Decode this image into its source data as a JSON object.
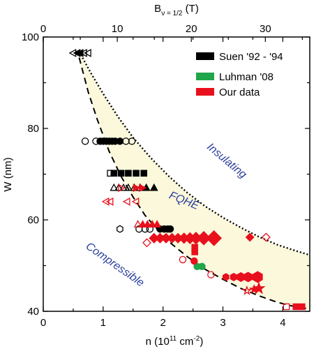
{
  "chart_data": {
    "type": "scatter",
    "xlabel": "n (10",
    "xlabel_sup": "11",
    "xlabel_unit": " cm",
    "xlabel_unit_sup": "-2",
    "xlabel_end": ")",
    "ylabel": "W (nm)",
    "top_xlabel": "B",
    "top_xlabel_sub": "ν = 1/2",
    "top_xlabel_end": " (T)",
    "xlim": [
      0,
      4.45
    ],
    "ylim": [
      40,
      100
    ],
    "top_xlim": [
      0,
      36
    ],
    "x_ticks": [
      "0",
      "1",
      "2",
      "3",
      "4"
    ],
    "y_ticks": [
      "40",
      "60",
      "80",
      "100"
    ],
    "top_ticks": [
      "0",
      "10",
      "20",
      "30"
    ],
    "annotations": [
      "Insulating",
      "FQHE",
      "Compressible"
    ],
    "legend": [
      {
        "label": "Suen '92 - '94",
        "color": "#000000"
      },
      {
        "label": "Luhman '08",
        "color": "#1fa64a"
      },
      {
        "label": "Our data",
        "color": "#e8101c"
      }
    ],
    "fill_color": "#fbf8dc",
    "upper_boundary": {
      "style": "dotted",
      "points": [
        [
          0.6,
          96.8
        ],
        [
          0.8,
          92.0
        ],
        [
          1.0,
          87.6
        ],
        [
          1.25,
          82.5
        ],
        [
          1.5,
          78.0
        ],
        [
          1.8,
          73.5
        ],
        [
          2.1,
          69.5
        ],
        [
          2.4,
          66.0
        ],
        [
          2.7,
          63.0
        ],
        [
          3.0,
          60.5
        ],
        [
          3.3,
          58.3
        ],
        [
          3.6,
          56.3
        ],
        [
          3.9,
          54.6
        ],
        [
          4.2,
          53.3
        ],
        [
          4.45,
          52.3
        ]
      ]
    },
    "lower_boundary": {
      "style": "dashed",
      "points": [
        [
          0.6,
          95.5
        ],
        [
          0.75,
          88.0
        ],
        [
          0.9,
          82.0
        ],
        [
          1.1,
          75.0
        ],
        [
          1.3,
          69.5
        ],
        [
          1.5,
          65.0
        ],
        [
          1.7,
          61.0
        ],
        [
          1.9,
          58.0
        ],
        [
          2.1,
          55.2
        ],
        [
          2.4,
          52.0
        ],
        [
          2.7,
          49.2
        ],
        [
          3.0,
          47.0
        ],
        [
          3.3,
          45.0
        ],
        [
          3.6,
          43.4
        ],
        [
          3.9,
          42.0
        ],
        [
          4.2,
          41.0
        ],
        [
          4.45,
          40.5
        ]
      ]
    },
    "series": [
      {
        "name": "Suen '92 - '94",
        "color": "#000000",
        "points": [
          {
            "x": 0.57,
            "y": 96.5,
            "m": "tri-left",
            "f": 1
          },
          {
            "x": 0.62,
            "y": 96.5,
            "m": "tri-left",
            "f": 1
          },
          {
            "x": 0.5,
            "y": 96.5,
            "m": "tri-left",
            "f": 0
          },
          {
            "x": 0.68,
            "y": 96.5,
            "m": "tri-left",
            "f": 0
          },
          {
            "x": 0.75,
            "y": 96.5,
            "m": "tri-left",
            "f": 0
          },
          {
            "x": 0.7,
            "y": 77.2,
            "m": "circle",
            "f": 0
          },
          {
            "x": 0.88,
            "y": 77.2,
            "m": "circle",
            "f": 0
          },
          {
            "x": 0.95,
            "y": 77.2,
            "m": "circle",
            "f": 1
          },
          {
            "x": 1.0,
            "y": 77.2,
            "m": "circle",
            "f": 1
          },
          {
            "x": 1.05,
            "y": 77.2,
            "m": "circle",
            "f": 1
          },
          {
            "x": 1.1,
            "y": 77.2,
            "m": "circle",
            "f": 1
          },
          {
            "x": 1.15,
            "y": 77.2,
            "m": "circle",
            "f": 1
          },
          {
            "x": 1.2,
            "y": 77.2,
            "m": "circle",
            "f": 1
          },
          {
            "x": 1.28,
            "y": 77.2,
            "m": "circle",
            "f": 1
          },
          {
            "x": 1.38,
            "y": 77.2,
            "m": "circle",
            "f": 0
          },
          {
            "x": 1.48,
            "y": 77.2,
            "m": "circle",
            "f": 0
          },
          {
            "x": 1.12,
            "y": 70.2,
            "m": "square",
            "f": 0
          },
          {
            "x": 1.18,
            "y": 70.2,
            "m": "square",
            "f": 1
          },
          {
            "x": 1.3,
            "y": 70.2,
            "m": "square",
            "f": 1
          },
          {
            "x": 1.42,
            "y": 70.2,
            "m": "square",
            "f": 1
          },
          {
            "x": 1.55,
            "y": 70.2,
            "m": "square",
            "f": 1
          },
          {
            "x": 1.68,
            "y": 70.2,
            "m": "square",
            "f": 1
          },
          {
            "x": 1.18,
            "y": 67.0,
            "m": "triangle",
            "f": 0
          },
          {
            "x": 1.26,
            "y": 67.0,
            "m": "triangle",
            "f": 0
          },
          {
            "x": 1.34,
            "y": 67.0,
            "m": "triangle",
            "f": 0
          },
          {
            "x": 1.42,
            "y": 67.0,
            "m": "triangle",
            "f": 0
          },
          {
            "x": 1.52,
            "y": 67.0,
            "m": "triangle",
            "f": 0
          },
          {
            "x": 1.62,
            "y": 67.0,
            "m": "triangle",
            "f": 0
          },
          {
            "x": 1.72,
            "y": 67.0,
            "m": "triangle",
            "f": 1
          },
          {
            "x": 1.85,
            "y": 67.0,
            "m": "triangle",
            "f": 1
          },
          {
            "x": 1.28,
            "y": 58.0,
            "m": "hexagon",
            "f": 0
          },
          {
            "x": 1.6,
            "y": 58.0,
            "m": "circle",
            "f": 0
          },
          {
            "x": 1.7,
            "y": 58.0,
            "m": "circle",
            "f": 0
          },
          {
            "x": 1.78,
            "y": 58.0,
            "m": "circle",
            "f": 0
          },
          {
            "x": 1.95,
            "y": 58.0,
            "m": "circle",
            "f": 1
          },
          {
            "x": 2.02,
            "y": 58.0,
            "m": "circle",
            "f": 1
          },
          {
            "x": 2.08,
            "y": 58.0,
            "m": "circle",
            "f": 1
          },
          {
            "x": 2.12,
            "y": 58.0,
            "m": "circle",
            "f": 1
          }
        ]
      },
      {
        "name": "Luhman '08",
        "color": "#1fa64a",
        "points": [
          {
            "x": 2.57,
            "y": 49.8,
            "m": "circle",
            "f": 1
          },
          {
            "x": 2.65,
            "y": 49.8,
            "m": "circle",
            "f": 1
          }
        ]
      },
      {
        "name": "Our data",
        "color": "#e8101c",
        "points": [
          {
            "x": 1.05,
            "y": 64.0,
            "m": "tri-left",
            "f": 0
          },
          {
            "x": 1.12,
            "y": 64.0,
            "m": "tri-left",
            "f": 0
          },
          {
            "x": 1.4,
            "y": 64.0,
            "m": "tri-left",
            "f": 0
          },
          {
            "x": 1.55,
            "y": 64.0,
            "m": "tri-left",
            "f": 0
          },
          {
            "x": 1.3,
            "y": 67.0,
            "m": "tri-right",
            "f": 0
          },
          {
            "x": 1.55,
            "y": 67.0,
            "m": "tri-right",
            "f": 1
          },
          {
            "x": 1.65,
            "y": 67.0,
            "m": "tri-right",
            "f": 1
          },
          {
            "x": 1.58,
            "y": 59.0,
            "m": "triangle",
            "f": 0
          },
          {
            "x": 1.66,
            "y": 59.0,
            "m": "triangle",
            "f": 1
          },
          {
            "x": 1.74,
            "y": 59.0,
            "m": "triangle",
            "f": 1
          },
          {
            "x": 1.82,
            "y": 59.0,
            "m": "triangle",
            "f": 1
          },
          {
            "x": 1.9,
            "y": 59.0,
            "m": "triangle",
            "f": 1
          },
          {
            "x": 1.73,
            "y": 55.0,
            "m": "diamond",
            "f": 0
          },
          {
            "x": 1.85,
            "y": 56.0,
            "m": "diamond",
            "f": 1,
            "s": 1.2
          },
          {
            "x": 1.95,
            "y": 56.0,
            "m": "diamond",
            "f": 1,
            "s": 1.2
          },
          {
            "x": 2.05,
            "y": 56.0,
            "m": "diamond",
            "f": 1,
            "s": 1.2
          },
          {
            "x": 2.15,
            "y": 56.0,
            "m": "diamond",
            "f": 1,
            "s": 1.2
          },
          {
            "x": 2.25,
            "y": 56.0,
            "m": "diamond",
            "f": 1,
            "s": 1.2
          },
          {
            "x": 2.35,
            "y": 56.0,
            "m": "diamond",
            "f": 1,
            "s": 1.3
          },
          {
            "x": 2.45,
            "y": 56.0,
            "m": "diamond",
            "f": 1,
            "s": 1.4
          },
          {
            "x": 2.55,
            "y": 56.0,
            "m": "diamond",
            "f": 1,
            "s": 1.5
          },
          {
            "x": 2.68,
            "y": 56.0,
            "m": "diamond",
            "f": 1,
            "s": 1.7
          },
          {
            "x": 2.85,
            "y": 56.0,
            "m": "diamond",
            "f": 1,
            "s": 1.9
          },
          {
            "x": 3.45,
            "y": 56.2,
            "m": "diamond",
            "f": 1
          },
          {
            "x": 3.72,
            "y": 56.2,
            "m": "diamond",
            "f": 0
          },
          {
            "x": 2.53,
            "y": 54.0,
            "m": "square",
            "f": 1
          },
          {
            "x": 2.53,
            "y": 53.0,
            "m": "square",
            "f": 1
          },
          {
            "x": 2.33,
            "y": 51.3,
            "m": "circle",
            "f": 0
          },
          {
            "x": 2.52,
            "y": 51.0,
            "m": "circle",
            "f": 1
          },
          {
            "x": 2.8,
            "y": 48.0,
            "m": "circle",
            "f": 0
          },
          {
            "x": 3.05,
            "y": 47.5,
            "m": "hexagon",
            "f": 1
          },
          {
            "x": 3.18,
            "y": 47.5,
            "m": "hexagon",
            "f": 1,
            "s": 1.1
          },
          {
            "x": 3.3,
            "y": 47.5,
            "m": "hexagon",
            "f": 1,
            "s": 1.3
          },
          {
            "x": 3.42,
            "y": 47.5,
            "m": "hexagon",
            "f": 1,
            "s": 1.4
          },
          {
            "x": 3.58,
            "y": 47.5,
            "m": "hexagon",
            "f": 1,
            "s": 1.6
          },
          {
            "x": 3.4,
            "y": 44.5,
            "m": "star",
            "f": 0
          },
          {
            "x": 3.52,
            "y": 44.8,
            "m": "star",
            "f": 1
          },
          {
            "x": 3.6,
            "y": 45.0,
            "m": "star",
            "f": 1,
            "s": 1.4
          },
          {
            "x": 4.06,
            "y": 41.0,
            "m": "square",
            "f": 0
          },
          {
            "x": 4.22,
            "y": 41.0,
            "m": "square",
            "f": 1
          },
          {
            "x": 4.32,
            "y": 41.0,
            "m": "square",
            "f": 1
          }
        ]
      }
    ]
  }
}
